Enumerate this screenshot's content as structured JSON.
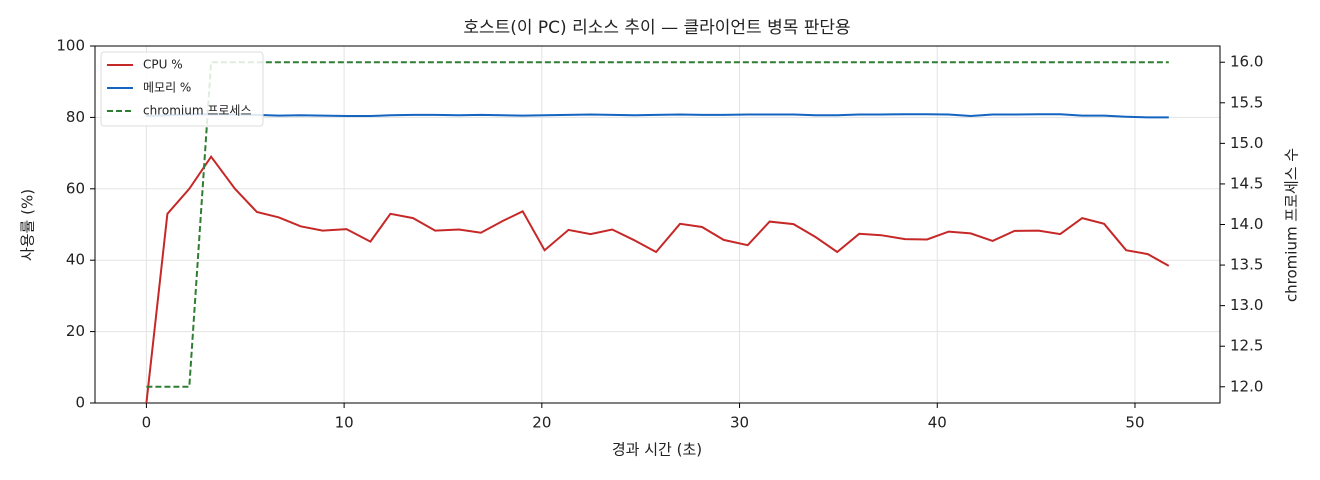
{
  "chart_data": {
    "type": "line",
    "title": "호스트(이 PC) 리소스 추이 — 클라이언트 병목 판단용",
    "xlabel": "경과 시간 (초)",
    "ylabel": "사용률 (%)",
    "y2label": "chromium 프로세스 수",
    "x": [
      0,
      1.06,
      2.17,
      3.27,
      4.48,
      5.59,
      6.7,
      7.8,
      8.91,
      10.12,
      11.33,
      12.34,
      13.49,
      14.6,
      15.81,
      16.92,
      18.03,
      19.03,
      20.14,
      21.35,
      22.46,
      23.56,
      24.67,
      25.78,
      26.99,
      28.1,
      29.2,
      30.41,
      31.52,
      32.73,
      33.84,
      34.94,
      36.05,
      37.16,
      38.37,
      39.48,
      40.58,
      41.69,
      42.8,
      43.91,
      45.12,
      46.22,
      47.33,
      48.44,
      49.55,
      50.65,
      51.71
    ],
    "series": [
      {
        "name": "CPU %",
        "color": "#c62828",
        "style": "solid",
        "axis": "y",
        "values": [
          0,
          53,
          60,
          69,
          60,
          53.5,
          52,
          49.5,
          48.3,
          48.7,
          45.2,
          53,
          51.8,
          48.3,
          48.6,
          47.7,
          51,
          53.7,
          42.8,
          48.5,
          47.3,
          48.6,
          45.6,
          42.3,
          50.2,
          49.3,
          45.7,
          44.2,
          50.8,
          50.1,
          46.5,
          42.3,
          47.4,
          47,
          45.9,
          45.8,
          48,
          47.5,
          45.4,
          48.2,
          48.3,
          47.3,
          51.8,
          50.2,
          42.8,
          41.7,
          38.4
        ]
      },
      {
        "name": "메모리 %",
        "color": "#1565c0",
        "style": "solid",
        "axis": "y",
        "values": [
          80.4,
          80.6,
          80.8,
          80.9,
          80.8,
          80.7,
          80.5,
          80.6,
          80.5,
          80.4,
          80.4,
          80.6,
          80.7,
          80.7,
          80.6,
          80.7,
          80.6,
          80.5,
          80.6,
          80.7,
          80.8,
          80.7,
          80.6,
          80.7,
          80.8,
          80.7,
          80.7,
          80.8,
          80.8,
          80.8,
          80.6,
          80.6,
          80.8,
          80.8,
          80.9,
          80.9,
          80.8,
          80.4,
          80.8,
          80.8,
          80.9,
          80.9,
          80.5,
          80.5,
          80.2,
          80.0,
          80.0
        ]
      },
      {
        "name": "chromium 프로세스",
        "color": "#2e7d32",
        "style": "dashed",
        "axis": "y2",
        "values": [
          12,
          12,
          12,
          16,
          16,
          16,
          16,
          16,
          16,
          16,
          16,
          16,
          16,
          16,
          16,
          16,
          16,
          16,
          16,
          16,
          16,
          16,
          16,
          16,
          16,
          16,
          16,
          16,
          16,
          16,
          16,
          16,
          16,
          16,
          16,
          16,
          16,
          16,
          16,
          16,
          16,
          16,
          16,
          16,
          16,
          16,
          16
        ]
      }
    ],
    "xlim": [
      -2.6,
      54.3
    ],
    "xticks": [
      0,
      10,
      20,
      30,
      40,
      50
    ],
    "ylim": [
      0,
      100
    ],
    "yticks": [
      0,
      20,
      40,
      60,
      80,
      100
    ],
    "y2lim": [
      11.8,
      16.2
    ],
    "y2ticks": [
      {
        "value": 12,
        "label": "12.0"
      },
      12.5,
      {
        "value": 13,
        "label": "13.0"
      },
      13.5,
      {
        "value": 14,
        "label": "14.0"
      },
      14.5,
      {
        "value": 15,
        "label": "15.0"
      },
      15.5,
      {
        "value": 16,
        "label": "16.0"
      }
    ],
    "grid": true,
    "legend": "upper left"
  }
}
